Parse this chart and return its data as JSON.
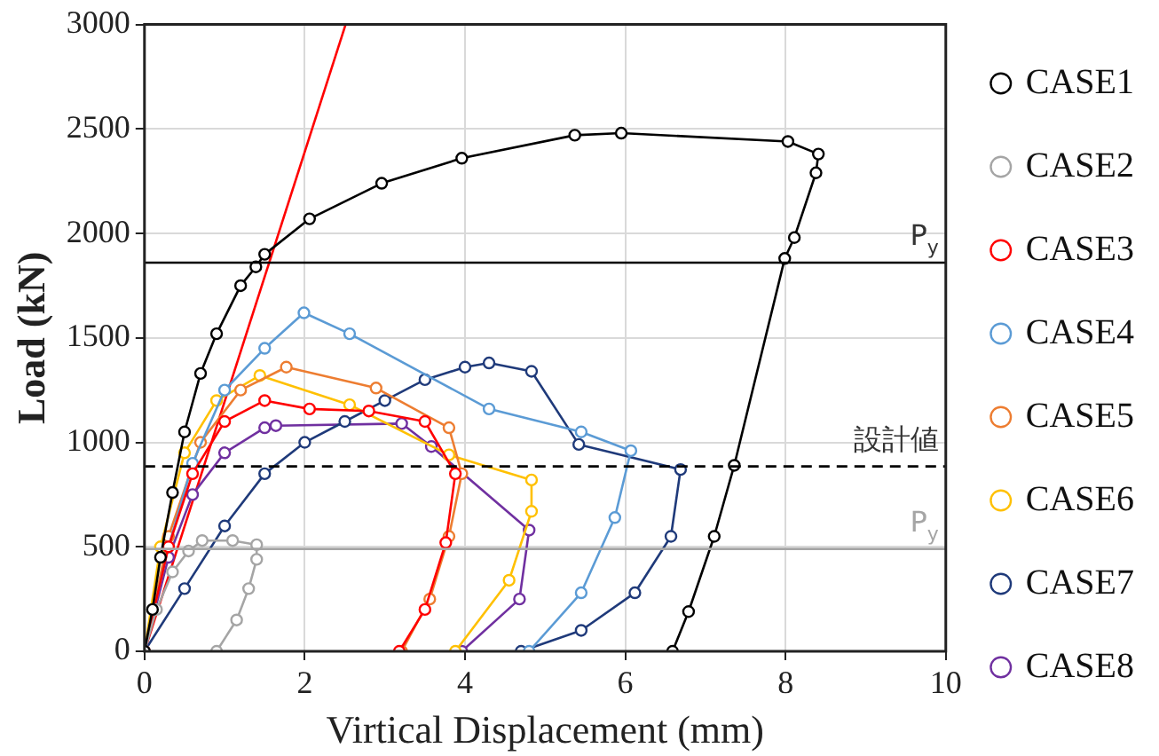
{
  "chart_data": {
    "type": "line",
    "xlabel": "Virtical Displacement (mm)",
    "ylabel": "Load (kN)",
    "xlim": [
      0,
      10
    ],
    "xticks": [
      0,
      2,
      4,
      6,
      8,
      10
    ],
    "ylim": [
      0,
      3000
    ],
    "yticks": [
      0,
      500,
      1000,
      1500,
      2000,
      2500,
      3000
    ],
    "grid": true,
    "legend": "right",
    "marker": "circle",
    "line_style": "solid",
    "series": [
      {
        "name": "CASE1",
        "color": "#000000",
        "x": [
          0,
          0.1,
          0.2,
          0.35,
          0.5,
          0.7,
          0.9,
          1.2,
          1.39,
          1.5,
          2.06,
          2.96,
          3.96,
          5.37,
          5.95,
          8.03,
          8.41,
          8.38,
          8.11,
          7.99,
          7.36,
          7.11,
          6.79,
          6.59
        ],
        "values": [
          0,
          200,
          450,
          760,
          1050,
          1330,
          1520,
          1750,
          1840,
          1900,
          2070,
          2240,
          2360,
          2470,
          2480,
          2440,
          2380,
          2290,
          1980,
          1880,
          890,
          550,
          190,
          0
        ]
      },
      {
        "name": "CASE2",
        "color": "#a5a5a5",
        "x": [
          0,
          0.15,
          0.35,
          0.55,
          0.72,
          1.1,
          1.4,
          1.4,
          1.3,
          1.15,
          0.9
        ],
        "values": [
          0,
          200,
          380,
          480,
          530,
          530,
          510,
          440,
          300,
          150,
          0
        ]
      },
      {
        "name": "CASE3",
        "color": "#ff0000",
        "x": [
          0,
          0.3,
          0.6,
          1.0,
          1.5,
          2.06,
          2.8,
          3.5,
          3.88,
          3.76,
          3.5,
          3.18
        ],
        "values": [
          0,
          500,
          850,
          1100,
          1200,
          1160,
          1150,
          1100,
          850,
          520,
          200,
          0
        ]
      },
      {
        "name": "CASE4",
        "color": "#5b9bd5",
        "x": [
          0,
          0.3,
          0.6,
          1.0,
          1.5,
          1.99,
          2.56,
          4.3,
          5.45,
          6.07,
          5.87,
          5.45,
          4.8
        ],
        "values": [
          0,
          500,
          900,
          1250,
          1450,
          1620,
          1520,
          1160,
          1050,
          960,
          640,
          280,
          0
        ]
      },
      {
        "name": "CASE5",
        "color": "#ed7d31",
        "x": [
          0,
          0.3,
          0.7,
          1.2,
          1.77,
          2.89,
          3.8,
          3.96,
          3.8,
          3.56,
          3.21
        ],
        "values": [
          0,
          550,
          1000,
          1250,
          1360,
          1260,
          1070,
          850,
          550,
          250,
          0
        ]
      },
      {
        "name": "CASE6",
        "color": "#ffc000",
        "x": [
          0,
          0.2,
          0.5,
          0.9,
          1.44,
          2.56,
          3.8,
          4.83,
          4.83,
          4.55,
          3.88
        ],
        "values": [
          0,
          500,
          950,
          1200,
          1320,
          1180,
          940,
          820,
          670,
          340,
          0
        ]
      },
      {
        "name": "CASE7",
        "color": "#1f3a7a",
        "x": [
          0,
          0.5,
          1,
          1.5,
          2,
          2.5,
          3,
          3.5,
          4,
          4.3,
          4.83,
          5.42,
          6.69,
          6.57,
          6.12,
          5.45,
          4.7
        ],
        "values": [
          0,
          300,
          600,
          850,
          1000,
          1100,
          1200,
          1300,
          1360,
          1380,
          1340,
          990,
          870,
          550,
          280,
          100,
          0
        ]
      },
      {
        "name": "CASE8",
        "color": "#7030a0",
        "x": [
          0,
          0.3,
          0.6,
          1.0,
          1.5,
          1.64,
          3.21,
          3.58,
          4.8,
          4.68,
          3.96
        ],
        "values": [
          0,
          450,
          750,
          950,
          1070,
          1080,
          1090,
          980,
          580,
          250,
          0
        ]
      },
      {
        "type": "line",
        "color": "#ff0000",
        "marker": "none",
        "x": [
          0,
          2.51
        ],
        "values": [
          0,
          3000
        ]
      }
    ],
    "ref_lines": [
      {
        "axis": "y",
        "value": 1860,
        "label": "P$_{y}$",
        "color": "#000000",
        "line_style": "solid"
      },
      {
        "axis": "y",
        "value": 885,
        "label": "設計値",
        "color": "#000000",
        "line_style": "dashed"
      },
      {
        "axis": "y",
        "value": 490,
        "label": "P$_{y}$",
        "color": "#a5a5a5",
        "line_style": "solid"
      }
    ]
  }
}
